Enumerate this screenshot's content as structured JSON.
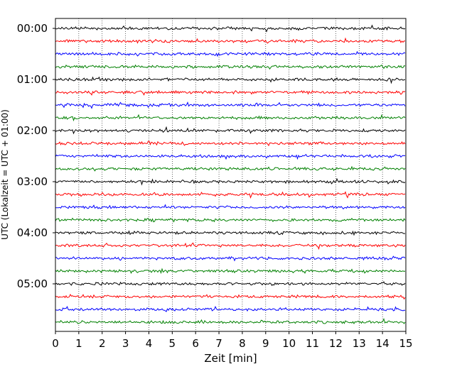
{
  "chart_data": {
    "type": "line",
    "title": "",
    "xlabel": "Zeit  [min]",
    "ylabel": "UTC (Lokalzeit = UTC + 01:00)",
    "xlim": [
      0,
      15
    ],
    "x_ticks": [
      "0",
      "1",
      "2",
      "3",
      "4",
      "5",
      "6",
      "7",
      "8",
      "9",
      "10",
      "11",
      "12",
      "13",
      "14",
      "15"
    ],
    "y_tick_labels": [
      "00:00",
      "01:00",
      "02:00",
      "03:00",
      "04:00",
      "05:00"
    ],
    "vertical_grid": "dotted",
    "trace_interval_minutes": 15,
    "trace_colors": [
      "#000000",
      "#ff0000",
      "#0000ff",
      "#008000"
    ],
    "traces": [
      {
        "start": "00:00",
        "color": "#000000"
      },
      {
        "start": "00:15",
        "color": "#ff0000"
      },
      {
        "start": "00:30",
        "color": "#0000ff"
      },
      {
        "start": "00:45",
        "color": "#008000"
      },
      {
        "start": "01:00",
        "color": "#000000"
      },
      {
        "start": "01:15",
        "color": "#ff0000"
      },
      {
        "start": "01:30",
        "color": "#0000ff"
      },
      {
        "start": "01:45",
        "color": "#008000"
      },
      {
        "start": "02:00",
        "color": "#000000"
      },
      {
        "start": "02:15",
        "color": "#ff0000"
      },
      {
        "start": "02:30",
        "color": "#0000ff"
      },
      {
        "start": "02:45",
        "color": "#008000"
      },
      {
        "start": "03:00",
        "color": "#000000"
      },
      {
        "start": "03:15",
        "color": "#ff0000"
      },
      {
        "start": "03:30",
        "color": "#0000ff"
      },
      {
        "start": "03:45",
        "color": "#008000"
      },
      {
        "start": "04:00",
        "color": "#000000"
      },
      {
        "start": "04:15",
        "color": "#ff0000"
      },
      {
        "start": "04:30",
        "color": "#0000ff"
      },
      {
        "start": "04:45",
        "color": "#008000"
      },
      {
        "start": "05:00",
        "color": "#000000"
      },
      {
        "start": "05:15",
        "color": "#ff0000"
      },
      {
        "start": "05:30",
        "color": "#0000ff"
      },
      {
        "start": "05:45",
        "color": "#008000"
      }
    ]
  }
}
